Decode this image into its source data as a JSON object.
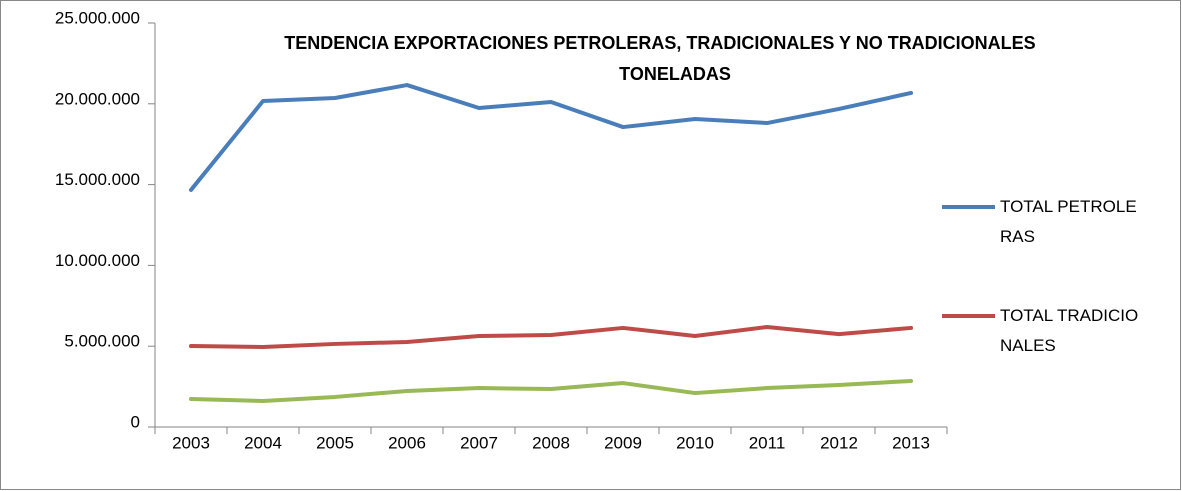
{
  "chart_data": {
    "type": "line",
    "title": "TENDENCIA EXPORTACIONES PETROLERAS, TRADICIONALES Y NO TRADICIONALES",
    "subtitle": "TONELADAS",
    "categories": [
      "2003",
      "2004",
      "2005",
      "2006",
      "2007",
      "2008",
      "2009",
      "2010",
      "2011",
      "2012",
      "2013"
    ],
    "series": [
      {
        "name": "TOTAL PETROLERAS",
        "color": "#4a7ebb",
        "values": [
          14670000,
          20170000,
          20360000,
          21160000,
          19740000,
          20110000,
          18560000,
          19060000,
          18810000,
          19680000,
          20670000
        ]
      },
      {
        "name": "TOTAL TRADICIONALES",
        "color": "#be4b48",
        "values": [
          5010000,
          4950000,
          5140000,
          5260000,
          5630000,
          5690000,
          6130000,
          5630000,
          6190000,
          5750000,
          6130000
        ]
      },
      {
        "color": "#98b954",
        "values": [
          1730000,
          1610000,
          1860000,
          2230000,
          2410000,
          2350000,
          2720000,
          2100000,
          2410000,
          2600000,
          2850000
        ]
      }
    ],
    "ylim": [
      0,
      25000000
    ],
    "yticks": [
      0,
      {
        "value": 5000000,
        "label": "5.000.000"
      },
      {
        "value": 10000000,
        "label": "10.000.000"
      },
      {
        "value": 15000000,
        "label": "15.000.000"
      },
      {
        "value": 20000000,
        "label": "20.000.000"
      },
      {
        "value": 25000000,
        "label": "25.000.000"
      }
    ],
    "legend": "right"
  }
}
